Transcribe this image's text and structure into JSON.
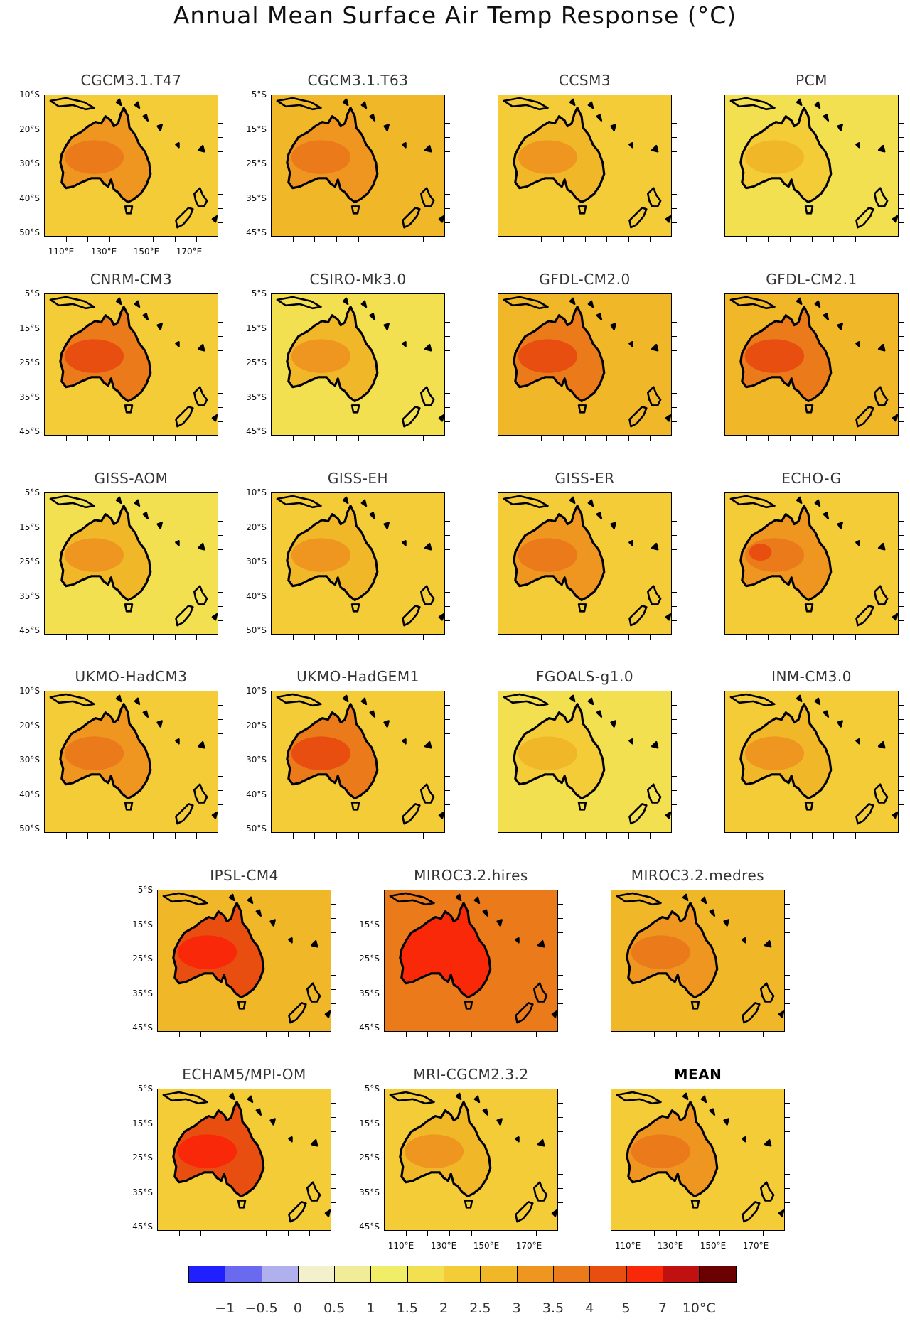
{
  "figure": {
    "title": "Annual Mean Surface Air Temp Response (°C)"
  },
  "palette": {
    "levels": [
      "−1",
      "−0.5",
      "0",
      "0.5",
      "1",
      "1.5",
      "2",
      "2.5",
      "3",
      "3.5",
      "4",
      "5",
      "7",
      "10°C"
    ],
    "colors": [
      "#2020ff",
      "#6a6af0",
      "#b0b0ee",
      "#f3f0cc",
      "#f0ec98",
      "#f0ee66",
      "#f3e050",
      "#f3cc38",
      "#f0b828",
      "#ee9620",
      "#ea7a1a",
      "#e84e10",
      "#f82808",
      "#c01010",
      "#6a0000"
    ]
  },
  "chart_data": {
    "type": "heatmap",
    "title": "Annual Mean Surface Air Temp Response (°C)",
    "units": "°C",
    "domain": {
      "lon_range": [
        100,
        180
      ],
      "lat_range": [
        -50,
        -5
      ]
    },
    "x_ticks_top_group": [
      "110°E",
      "130°E",
      "150°E",
      "170°E"
    ],
    "panels": [
      {
        "name": "CGCM3.1.T47",
        "ylabels": [
          "10°S",
          "20°S",
          "30°S",
          "40°S",
          "50°S"
        ],
        "xlabels": true,
        "ocean": 2.0,
        "land": 3.0,
        "core": 3.5,
        "hot": null
      },
      {
        "name": "CGCM3.1.T63",
        "ylabels": [
          "5°S",
          "15°S",
          "25°S",
          "35°S",
          "45°S"
        ],
        "xlabels": false,
        "ocean": 2.5,
        "land": 3.0,
        "core": 3.5,
        "hot": null
      },
      {
        "name": "CCSM3",
        "ylabels": [],
        "xlabels": false,
        "ocean": 2.0,
        "land": 2.5,
        "core": 3.0,
        "hot": null
      },
      {
        "name": "PCM",
        "ylabels": [],
        "xlabels": false,
        "ocean": 1.5,
        "land": 2.0,
        "core": 2.5,
        "hot": null
      },
      {
        "name": "CNRM-CM3",
        "ylabels": [
          "5°S",
          "15°S",
          "25°S",
          "35°S",
          "45°S"
        ],
        "xlabels": false,
        "ocean": 2.0,
        "land": 3.5,
        "core": 4.0,
        "hot": null
      },
      {
        "name": "CSIRO-Mk3.0",
        "ylabels": [
          "5°S",
          "15°S",
          "25°S",
          "35°S",
          "45°S"
        ],
        "xlabels": false,
        "ocean": 1.5,
        "land": 2.5,
        "core": 3.0,
        "hot": null
      },
      {
        "name": "GFDL-CM2.0",
        "ylabels": [],
        "xlabels": false,
        "ocean": 2.5,
        "land": 3.5,
        "core": 4.0,
        "hot": null
      },
      {
        "name": "GFDL-CM2.1",
        "ylabels": [],
        "xlabels": false,
        "ocean": 2.5,
        "land": 3.5,
        "core": 4.0,
        "hot": null
      },
      {
        "name": "GISS-AOM",
        "ylabels": [
          "5°S",
          "15°S",
          "25°S",
          "35°S",
          "45°S"
        ],
        "xlabels": false,
        "ocean": 1.5,
        "land": 2.5,
        "core": 3.0,
        "hot": null
      },
      {
        "name": "GISS-EH",
        "ylabels": [
          "10°S",
          "20°S",
          "30°S",
          "40°S",
          "50°S"
        ],
        "xlabels": false,
        "ocean": 2.0,
        "land": 2.5,
        "core": 3.0,
        "hot": null
      },
      {
        "name": "GISS-ER",
        "ylabels": [],
        "xlabels": false,
        "ocean": 2.0,
        "land": 3.0,
        "core": 3.5,
        "hot": null
      },
      {
        "name": "ECHO-G",
        "ylabels": [],
        "xlabels": false,
        "ocean": 2.0,
        "land": 3.0,
        "core": 3.5,
        "hot": 4.0
      },
      {
        "name": "UKMO-HadCM3",
        "ylabels": [
          "10°S",
          "20°S",
          "30°S",
          "40°S",
          "50°S"
        ],
        "xlabels": false,
        "ocean": 2.0,
        "land": 3.0,
        "core": 3.5,
        "hot": null
      },
      {
        "name": "UKMO-HadGEM1",
        "ylabels": [
          "10°S",
          "20°S",
          "30°S",
          "40°S",
          "50°S"
        ],
        "xlabels": false,
        "ocean": 2.0,
        "land": 3.5,
        "core": 4.0,
        "hot": null
      },
      {
        "name": "FGOALS-g1.0",
        "ylabels": [],
        "xlabels": false,
        "ocean": 1.5,
        "land": 2.0,
        "core": 2.5,
        "hot": null
      },
      {
        "name": "INM-CM3.0",
        "ylabels": [],
        "xlabels": false,
        "ocean": 2.0,
        "land": 2.5,
        "core": 3.0,
        "hot": null
      },
      {
        "name": "IPSL-CM4",
        "ylabels": [
          "5°S",
          "15°S",
          "25°S",
          "35°S",
          "45°S"
        ],
        "xlabels": false,
        "ocean": 2.5,
        "land": 4.0,
        "core": 5.0,
        "hot": null
      },
      {
        "name": "MIROC3.2.hires",
        "ylabels": [
          "15°S",
          "25°S",
          "35°S",
          "45°S"
        ],
        "xlabels": false,
        "ocean": 3.5,
        "land": 5.0,
        "core": 5.0,
        "hot": null
      },
      {
        "name": "MIROC3.2.medres",
        "ylabels": [],
        "xlabels": false,
        "ocean": 2.5,
        "land": 3.0,
        "core": 3.5,
        "hot": null
      },
      {
        "name": "ECHAM5/MPI-OM",
        "ylabels": [
          "5°S",
          "15°S",
          "25°S",
          "35°S",
          "45°S"
        ],
        "xlabels": false,
        "ocean": 2.0,
        "land": 4.0,
        "core": 5.0,
        "hot": null
      },
      {
        "name": "MRI-CGCM2.3.2",
        "ylabels": [
          "5°S",
          "15°S",
          "25°S",
          "35°S",
          "45°S"
        ],
        "xlabels": true,
        "ocean": 2.0,
        "land": 2.5,
        "core": 3.0,
        "hot": null
      },
      {
        "name": "MEAN",
        "ylabels": [],
        "xlabels": true,
        "ocean": 2.0,
        "land": 3.0,
        "core": 3.5,
        "hot": null,
        "bold": true
      }
    ]
  }
}
